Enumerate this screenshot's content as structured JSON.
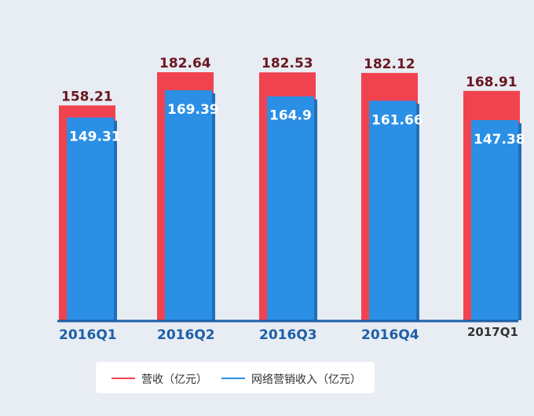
{
  "chart_data": {
    "type": "bar",
    "categories": [
      "2016Q1",
      "2016Q2",
      "2016Q3",
      "2016Q4",
      "2017Q1"
    ],
    "series": [
      {
        "name": "营收（亿元）",
        "color": "#f1434f",
        "values": [
          158.21,
          182.64,
          182.53,
          182.12,
          168.91
        ]
      },
      {
        "name": "网络营销收入（亿元）",
        "color": "#2b8fe6",
        "values": [
          149.31,
          169.39,
          164.9,
          161.66,
          147.38
        ]
      }
    ],
    "value_labels": [
      [
        "158.21",
        "182.64",
        "182.53",
        "182.12",
        "168.91"
      ],
      [
        "149.31",
        "169.39",
        "164.9",
        "161.66",
        "147.38"
      ]
    ],
    "title": "",
    "xlabel": "",
    "ylabel": "",
    "ylim": [
      0,
      190
    ],
    "grid": false,
    "legend_position": "bottom",
    "baseline_color": "#1d5fa8"
  }
}
